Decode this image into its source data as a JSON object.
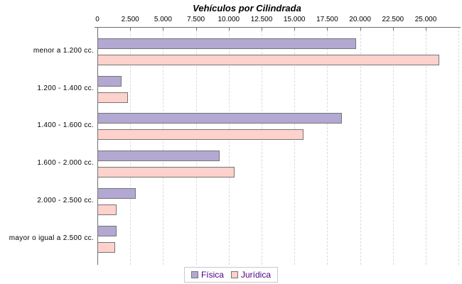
{
  "chart_data": {
    "type": "bar",
    "orientation": "horizontal",
    "title": "Vehículos por Cilindrada",
    "categories": [
      "menor a 1.200 cc.",
      "1.200 - 1.400 cc.",
      "1.400 - 1.600 cc.",
      "1.600 - 2.000 cc.",
      "2.000 - 2.500 cc.",
      "mayor o igual a 2.500 cc."
    ],
    "series": [
      {
        "name": "Física",
        "color": "#b3a8d2",
        "values": [
          19700,
          1850,
          18600,
          9300,
          2920,
          1450
        ]
      },
      {
        "name": "Jurídica",
        "color": "#fdd1cc",
        "values": [
          26050,
          2350,
          15700,
          10450,
          1480,
          1370
        ]
      }
    ],
    "xlim": [
      0,
      27500
    ],
    "x_tick_step": 2500,
    "x_tick_labels": [
      "0",
      "2.500",
      "5.000",
      "7.500",
      "10.000",
      "12.500",
      "15.000",
      "17.500",
      "20.000",
      "22.500",
      "25.000"
    ],
    "grid": true,
    "legend_position": "bottom",
    "colors": {
      "grid": "#d9d9d9",
      "axis": "#6e6e6e",
      "bar_border": "#757575",
      "legend_text": "#4b0082"
    }
  }
}
